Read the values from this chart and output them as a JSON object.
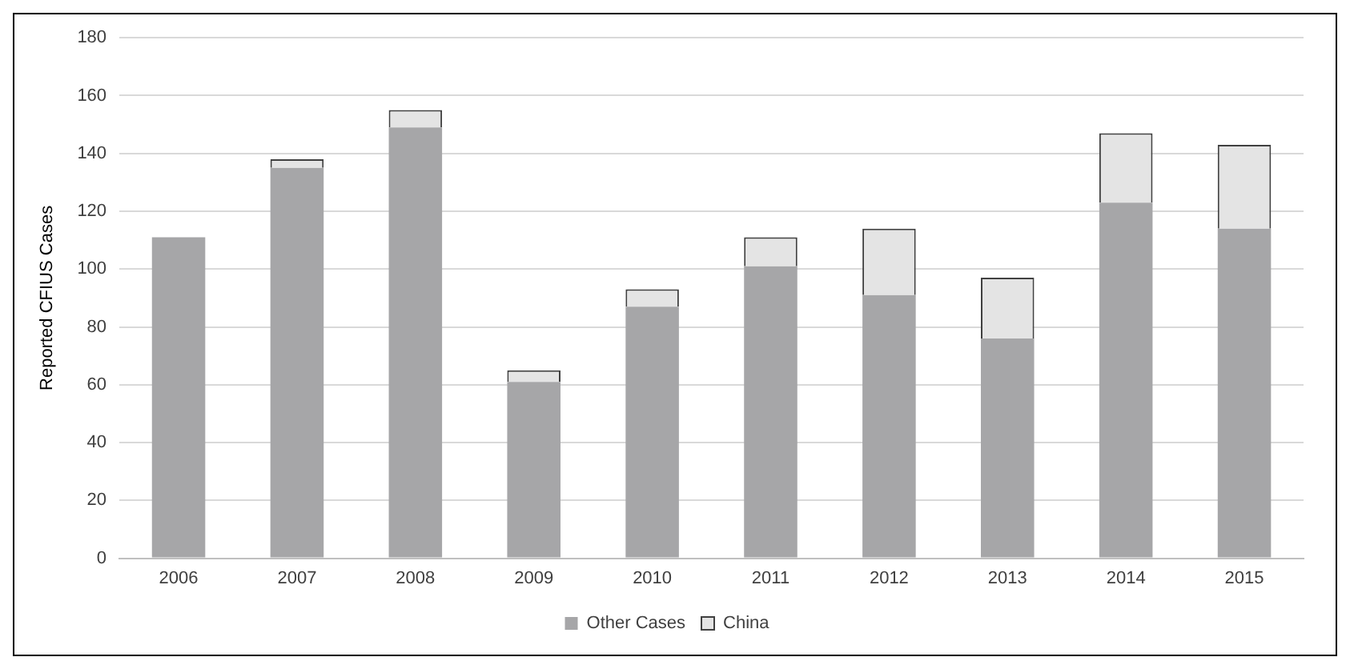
{
  "chart_data": {
    "type": "bar",
    "stacked": true,
    "ylabel": "Reported CFIUS Cases",
    "categories": [
      "2006",
      "2007",
      "2008",
      "2009",
      "2010",
      "2011",
      "2012",
      "2013",
      "2014",
      "2015"
    ],
    "series": [
      {
        "name": "Other Cases",
        "color": "#a6a6a8",
        "values": [
          111,
          135,
          149,
          61,
          87,
          101,
          91,
          76,
          123,
          114
        ]
      },
      {
        "name": "China",
        "color": "#e4e4e4",
        "values": [
          0,
          3,
          6,
          4,
          6,
          10,
          23,
          21,
          24,
          29
        ]
      }
    ],
    "ylim": [
      0,
      180
    ],
    "yticks": [
      0,
      20,
      40,
      60,
      80,
      100,
      120,
      140,
      160,
      180
    ],
    "grid": "y",
    "legend": "bottom"
  }
}
